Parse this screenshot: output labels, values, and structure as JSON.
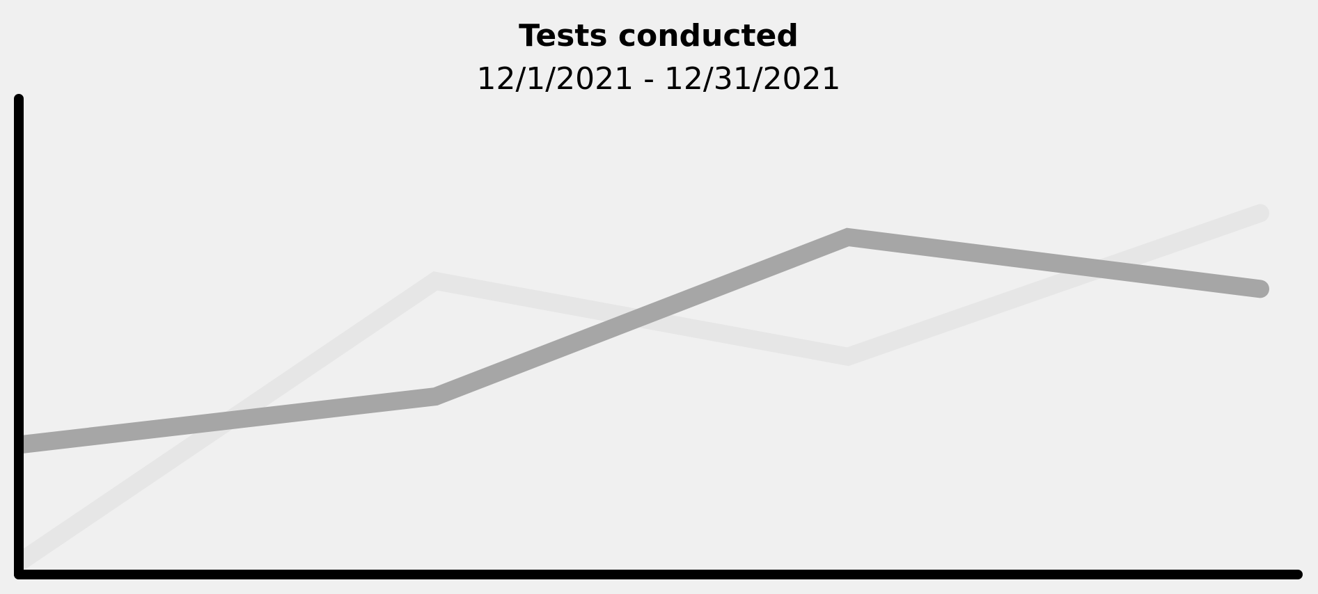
{
  "chart_data": {
    "type": "line",
    "title": "Tests conducted",
    "subtitle": "12/1/2021 - 12/31/2021",
    "xlabel": "",
    "ylabel": "",
    "x": [
      1,
      2,
      3,
      4
    ],
    "ylim": [
      0,
      100
    ],
    "grid": false,
    "series": [
      {
        "color": "#a6a6a6",
        "values": [
          29,
          41,
          81,
          68
        ]
      },
      {
        "color": "#e6e6e6",
        "values": [
          0,
          70,
          51,
          87
        ]
      }
    ]
  }
}
